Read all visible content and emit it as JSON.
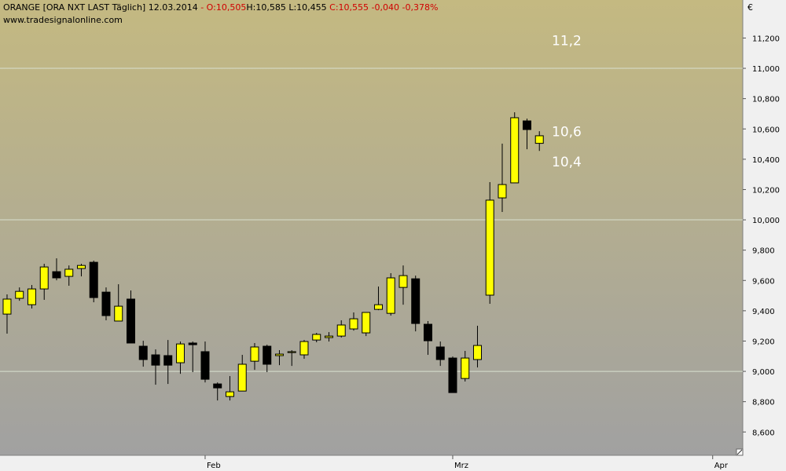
{
  "chart_data": {
    "type": "candlestick",
    "header": {
      "symbol": "ORANGE [ORA NXT LAST Täglich]",
      "date": "12.03.2014",
      "open": "- O:10,505",
      "high": "H:10,585",
      "low": "L:10,455",
      "close": "C:10,555",
      "change": "-0,040",
      "change_pct": "-0,378%"
    },
    "source": "www.tradesignalonline.com",
    "currency": "€",
    "x": [
      0,
      1,
      2,
      3,
      4,
      5,
      6,
      7,
      8,
      9,
      10,
      11,
      12,
      13,
      14,
      15,
      16,
      17,
      18,
      19,
      20,
      21,
      22,
      23,
      24,
      25,
      26,
      27,
      28,
      29,
      30,
      31,
      32,
      33,
      34,
      35,
      36,
      37,
      38,
      39,
      40,
      41,
      42,
      43
    ],
    "open": [
      9.378,
      9.482,
      9.44,
      9.544,
      9.658,
      9.627,
      9.679,
      9.72,
      9.523,
      9.332,
      9.477,
      9.166,
      9.109,
      9.104,
      9.057,
      9.187,
      9.13,
      8.917,
      8.834,
      8.87,
      9.067,
      9.166,
      9.104,
      9.124,
      9.109,
      9.207,
      9.223,
      9.233,
      9.28,
      9.254,
      9.409,
      9.383,
      9.554,
      9.611,
      9.311,
      9.161,
      9.088,
      8.953,
      9.078,
      9.503,
      10.145,
      10.244,
      10.653,
      10.505
    ],
    "high": [
      9.508,
      9.554,
      9.57,
      9.71,
      9.746,
      9.699,
      9.71,
      9.731,
      9.554,
      9.575,
      9.534,
      9.202,
      9.145,
      9.207,
      9.197,
      9.197,
      9.197,
      8.927,
      8.969,
      9.109,
      9.187,
      9.176,
      9.14,
      9.14,
      9.207,
      9.254,
      9.259,
      9.337,
      9.389,
      9.389,
      9.56,
      9.648,
      9.699,
      9.632,
      9.332,
      9.197,
      9.098,
      9.135,
      9.301,
      10.249,
      10.503,
      10.71,
      10.668,
      10.585
    ],
    "low": [
      9.249,
      9.466,
      9.415,
      9.472,
      9.601,
      9.565,
      9.627,
      9.456,
      9.337,
      9.332,
      9.187,
      9.031,
      8.912,
      8.917,
      8.984,
      8.995,
      8.927,
      8.808,
      8.808,
      8.87,
      9.01,
      8.995,
      9.041,
      9.036,
      9.083,
      9.192,
      9.197,
      9.223,
      9.269,
      9.233,
      9.404,
      9.368,
      9.44,
      9.264,
      9.109,
      9.036,
      8.86,
      8.933,
      9.026,
      9.446,
      10.052,
      10.244,
      10.466,
      10.455
    ],
    "close": [
      9.477,
      9.528,
      9.544,
      9.689,
      9.617,
      9.674,
      9.699,
      9.487,
      9.368,
      9.43,
      9.187,
      9.078,
      9.041,
      9.041,
      9.181,
      9.176,
      8.948,
      8.891,
      8.865,
      9.047,
      9.161,
      9.047,
      9.114,
      9.13,
      9.197,
      9.244,
      9.233,
      9.306,
      9.347,
      9.389,
      9.44,
      9.617,
      9.632,
      9.316,
      9.202,
      9.078,
      8.86,
      9.088,
      9.171,
      10.13,
      10.233,
      10.674,
      10.596,
      10.555
    ],
    "up_color": "#ffff00",
    "down_color": "#000000",
    "xlim": [
      -0.57,
      59.43
    ],
    "xticks": [
      {
        "value": 16,
        "label": "Feb"
      },
      {
        "value": 36,
        "label": "Mrz"
      },
      {
        "value": 57,
        "label": "Apr"
      }
    ],
    "ylim": [
      8.446,
      11.451
    ],
    "yticks": [
      {
        "value": 8.6,
        "label": "8,600"
      },
      {
        "value": 8.8,
        "label": "8,800"
      },
      {
        "value": 9.0,
        "label": "9,000"
      },
      {
        "value": 9.2,
        "label": "9,200"
      },
      {
        "value": 9.4,
        "label": "9,400"
      },
      {
        "value": 9.6,
        "label": "9,600"
      },
      {
        "value": 9.8,
        "label": "9,800"
      },
      {
        "value": 10.0,
        "label": "10,000"
      },
      {
        "value": 10.2,
        "label": "10,200"
      },
      {
        "value": 10.4,
        "label": "10,400"
      },
      {
        "value": 10.6,
        "label": "10,600"
      },
      {
        "value": 10.8,
        "label": "10,800"
      },
      {
        "value": 11.0,
        "label": "11,000"
      },
      {
        "value": 11.2,
        "label": "11,200"
      }
    ],
    "grid": "integer",
    "annotations": [
      {
        "value": 11.2,
        "label": "11,2"
      },
      {
        "value": 10.6,
        "label": "10,6"
      },
      {
        "value": 10.4,
        "label": "10,4"
      }
    ]
  }
}
